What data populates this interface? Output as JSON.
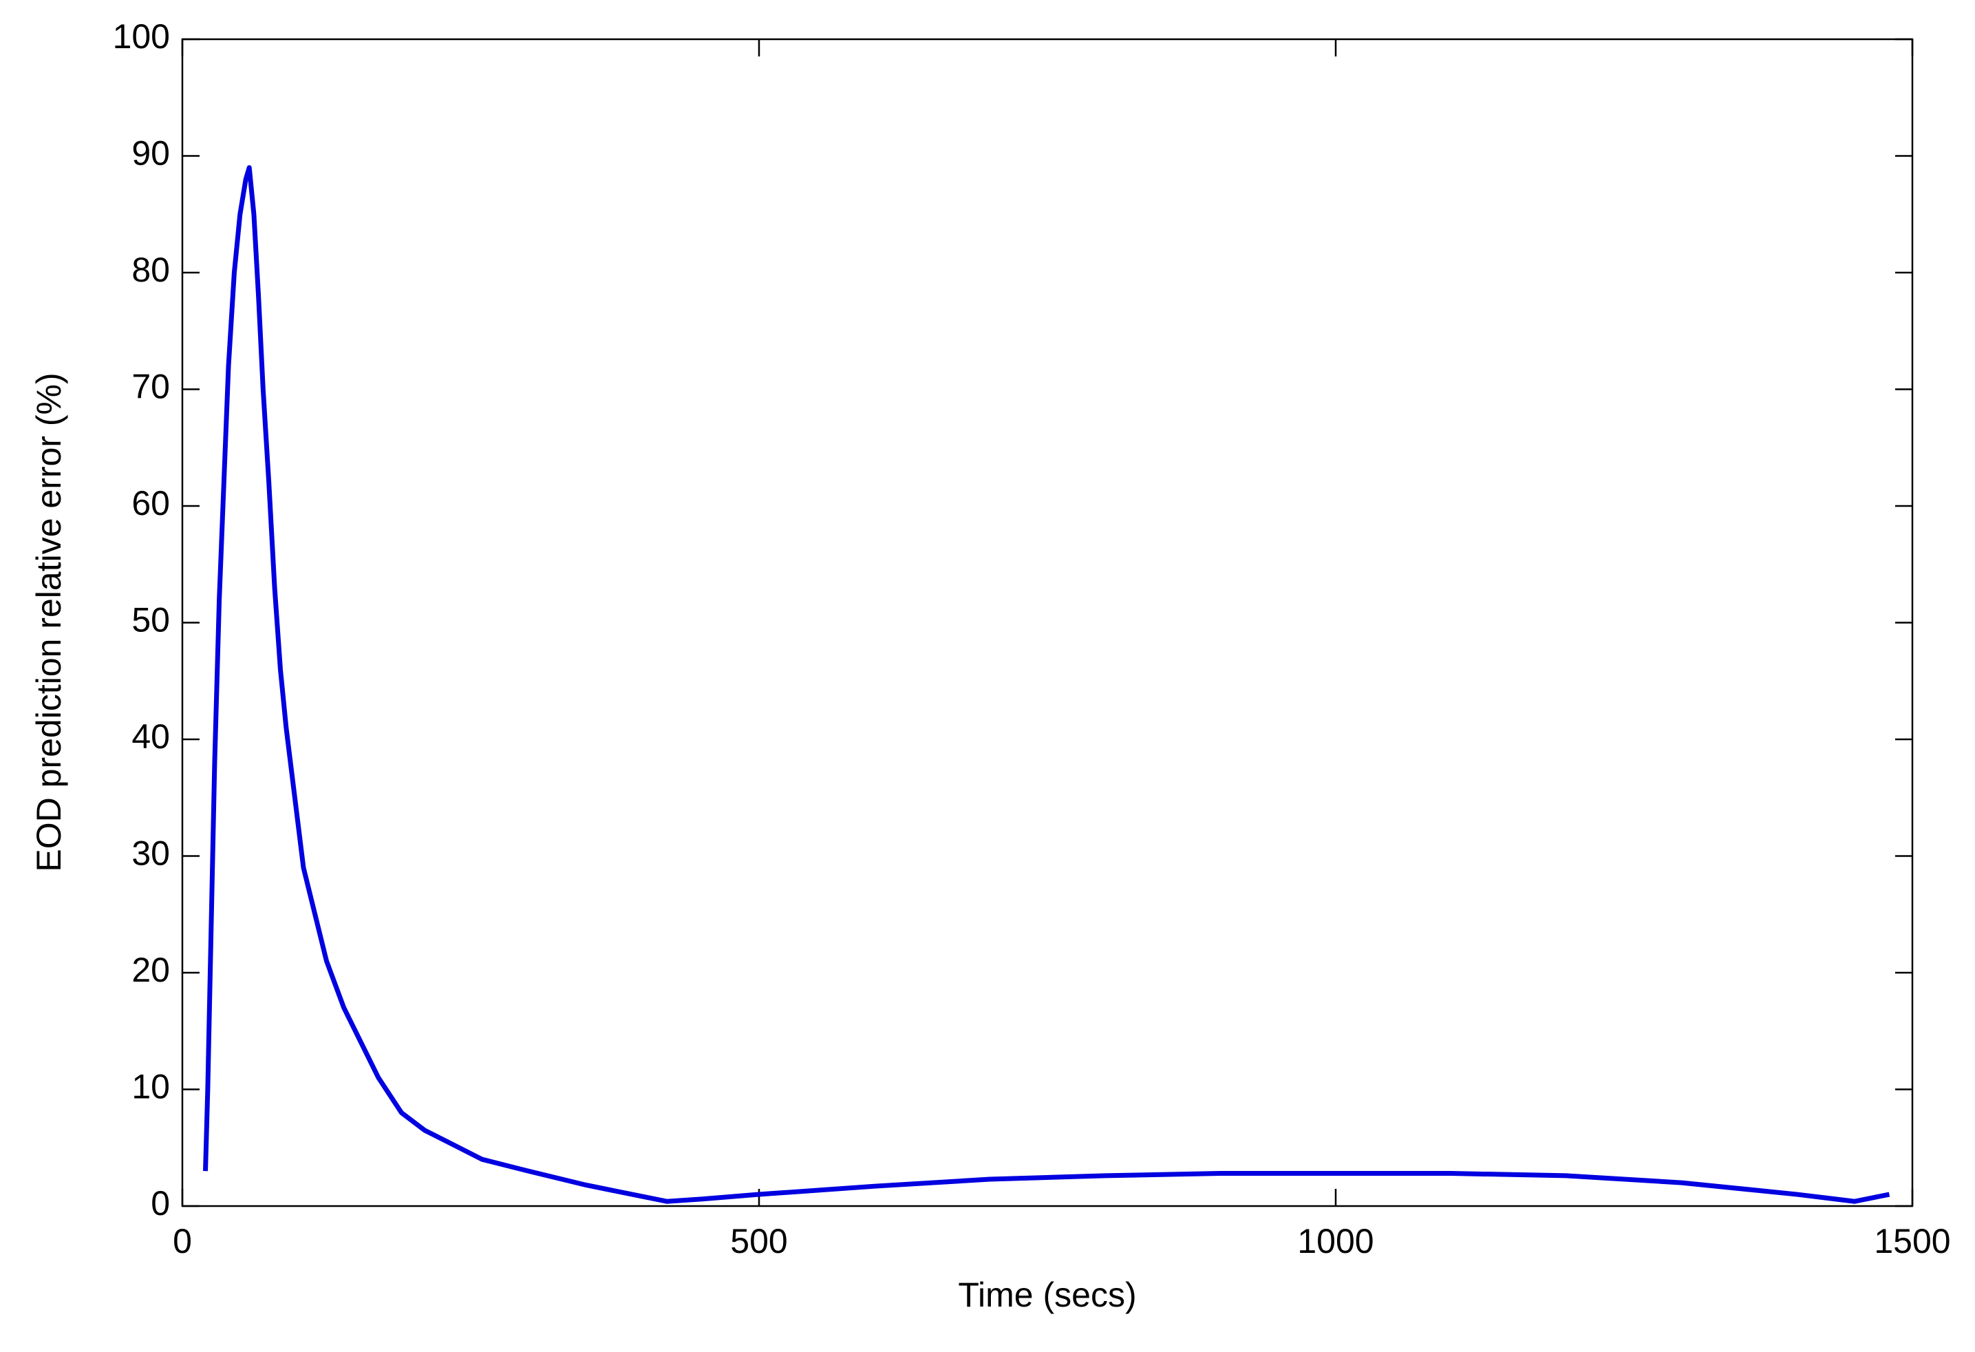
{
  "chart_data": {
    "type": "line",
    "xlabel": "Time (secs)",
    "ylabel": "EOD prediction relative error (%)",
    "x": [
      20,
      22,
      25,
      28,
      32,
      36,
      40,
      45,
      50,
      55,
      58,
      62,
      66,
      70,
      75,
      80,
      85,
      90,
      95,
      100,
      105,
      115,
      125,
      140,
      155,
      170,
      190,
      210,
      230,
      260,
      300,
      350,
      400,
      420,
      450,
      500,
      600,
      700,
      800,
      900,
      1000,
      1100,
      1200,
      1300,
      1400,
      1450,
      1480
    ],
    "values": [
      3,
      10,
      24,
      38,
      52,
      62,
      72,
      80,
      85,
      88,
      89,
      85,
      78,
      70,
      62,
      53,
      46,
      41,
      37,
      33,
      29,
      25,
      21,
      17,
      14,
      11,
      8,
      6.5,
      5.5,
      4,
      3,
      1.8,
      0.8,
      0.4,
      0.6,
      1,
      1.7,
      2.3,
      2.6,
      2.8,
      2.8,
      2.8,
      2.6,
      2,
      1,
      0.4,
      1
    ],
    "color": "#0000e0",
    "xlim": [
      0,
      1500
    ],
    "xticks": [
      0,
      500,
      1000,
      1500
    ],
    "ylim": [
      0,
      100
    ],
    "yticks": [
      0,
      10,
      20,
      30,
      40,
      50,
      60,
      70,
      80,
      90,
      100
    ]
  }
}
